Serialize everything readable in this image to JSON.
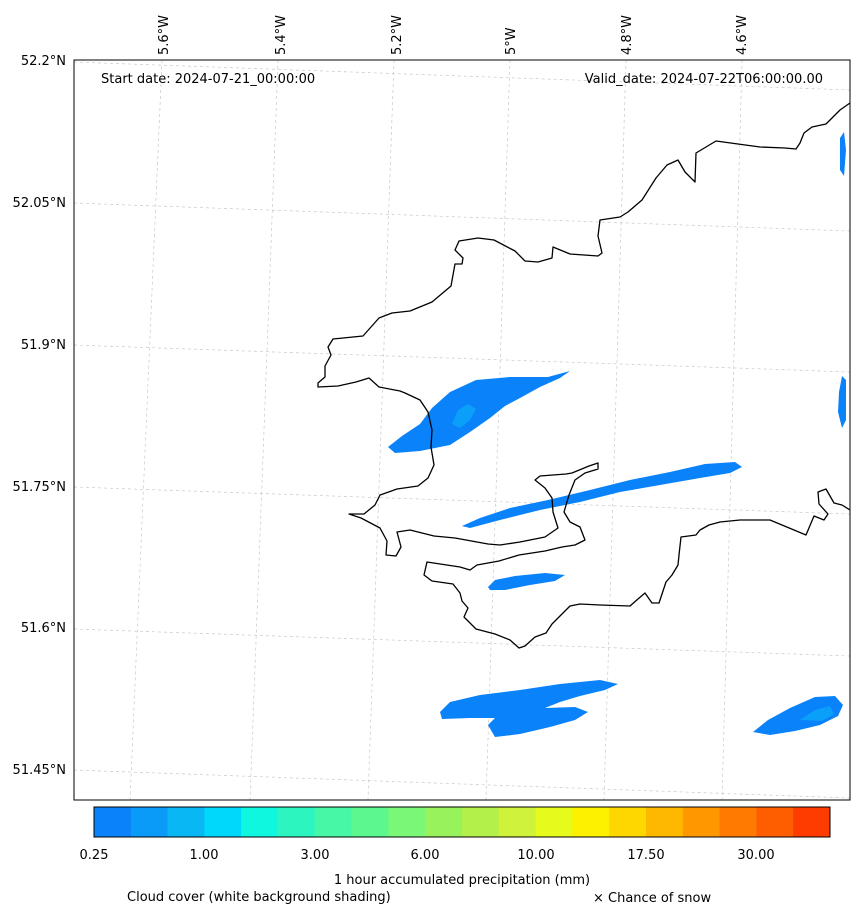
{
  "map": {
    "start_date": "Start date: 2024-07-21_00:00:00",
    "valid_date": "Valid_date: 2024-07-22T06:00:00.00",
    "lon_labels": [
      "5.6°W",
      "5.4°W",
      "5.2°W",
      "5°W",
      "4.8°W",
      "4.6°W"
    ],
    "lat_labels": [
      "52.2°N",
      "52.05°N",
      "51.9°N",
      "51.75°N",
      "51.6°N",
      "51.45°N"
    ]
  },
  "colorbar": {
    "label": "1 hour accumulated precipitation (mm)",
    "tick_labels": [
      "0.25",
      "1.00",
      "3.00",
      "6.00",
      "10.00",
      "17.50",
      "30.00"
    ],
    "colors": [
      "#0a82fa",
      "#0a9af8",
      "#0ab7f5",
      "#00d8fb",
      "#10f7e0",
      "#2cf5c0",
      "#48f7a6",
      "#5cf78e",
      "#7af777",
      "#98f25c",
      "#b4f04a",
      "#cff23a",
      "#e6fa1c",
      "#fdf100",
      "#ffd700",
      "#ffb800",
      "#ff9800",
      "#ff7a00",
      "#ff5e00",
      "#ff3c00"
    ]
  },
  "legend": {
    "cloud_cover": "Cloud cover (white background shading)",
    "snow": "× Chance of snow"
  }
}
